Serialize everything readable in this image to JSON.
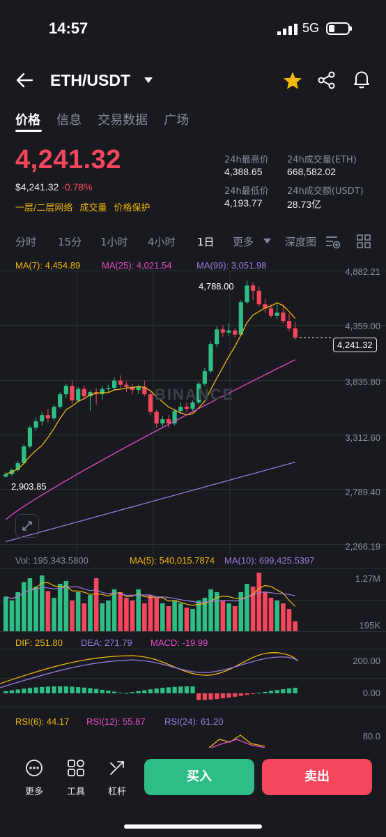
{
  "status": {
    "time": "14:57",
    "network": "5G"
  },
  "header": {
    "pair": "ETH/USDT"
  },
  "tabs": [
    "价格",
    "信息",
    "交易数据",
    "广场"
  ],
  "ticker": {
    "price": "4,241.32",
    "usd_price": "$4,241.32",
    "change": "-0.78%",
    "tags": [
      "一层/二层网络",
      "成交量",
      "价格保护"
    ],
    "high_label": "24h最高价",
    "high": "4,388.65",
    "low_label": "24h最低价",
    "low": "4,193.77",
    "vol_eth_label": "24h成交量(ETH)",
    "vol_eth": "668,582.02",
    "vol_usdt_label": "24h成交额(USDT)",
    "vol_usdt": "28.73亿"
  },
  "intervals": [
    "分时",
    "15分",
    "1小时",
    "4小时",
    "1日",
    "更多",
    "深度图"
  ],
  "ma": {
    "ma7": "MA(7): 4,454.89",
    "ma25": "MA(25): 4,021.54",
    "ma99": "MA(99): 3,051.98"
  },
  "price_axis": [
    "4,882.21",
    "4,359.00",
    "3,835.80",
    "3,312.60",
    "2,789.40",
    "2,266.19"
  ],
  "annotations": {
    "high": "4,788.00",
    "low": "2,903.85",
    "current": "4,241.32"
  },
  "watermark": "BINANCE",
  "volume": {
    "vol": "Vol: 195,343.5800",
    "ma5": "MA(5): 540,015.7874",
    "ma10": "MA(10): 699,425.5397",
    "axis_top": "1.27M",
    "axis_bottom": "195K"
  },
  "macd": {
    "dif": "DIF: 251.80",
    "dea": "DEA: 271.79",
    "macd": "MACD: -19.99",
    "axis_top": "200.00",
    "axis_bottom": "0.00"
  },
  "rsi": {
    "rsi6": "RSI(6): 44.17",
    "rsi12": "RSI(12): 55.87",
    "rsi24": "RSI(24): 61.20",
    "axis_top": "80.0"
  },
  "bottom": {
    "more": "更多",
    "tools": "工具",
    "leverage": "杠杆",
    "buy": "买入",
    "sell": "卖出"
  },
  "colors": {
    "up": "#2ebd85",
    "down": "#f6465d",
    "accent": "#f0b90b",
    "ma25": "#e74cc3",
    "ma99": "#9b7bd9"
  },
  "chart_data": {
    "type": "candlestick",
    "candles": [
      {
        "o": 2910,
        "h": 2960,
        "l": 2904,
        "c": 2935
      },
      {
        "o": 2935,
        "h": 2990,
        "l": 2920,
        "c": 2975
      },
      {
        "o": 2975,
        "h": 3060,
        "l": 2960,
        "c": 3040
      },
      {
        "o": 3040,
        "h": 3220,
        "l": 3030,
        "c": 3200
      },
      {
        "o": 3200,
        "h": 3400,
        "l": 3180,
        "c": 3380
      },
      {
        "o": 3380,
        "h": 3480,
        "l": 3350,
        "c": 3440
      },
      {
        "o": 3440,
        "h": 3530,
        "l": 3400,
        "c": 3500
      },
      {
        "o": 3500,
        "h": 3560,
        "l": 3430,
        "c": 3470
      },
      {
        "o": 3470,
        "h": 3600,
        "l": 3440,
        "c": 3580
      },
      {
        "o": 3580,
        "h": 3720,
        "l": 3560,
        "c": 3700
      },
      {
        "o": 3700,
        "h": 3800,
        "l": 3660,
        "c": 3780
      },
      {
        "o": 3780,
        "h": 3830,
        "l": 3610,
        "c": 3640
      },
      {
        "o": 3640,
        "h": 3770,
        "l": 3620,
        "c": 3750
      },
      {
        "o": 3750,
        "h": 3780,
        "l": 3650,
        "c": 3680
      },
      {
        "o": 3680,
        "h": 3740,
        "l": 3540,
        "c": 3720
      },
      {
        "o": 3720,
        "h": 3760,
        "l": 3600,
        "c": 3700
      },
      {
        "o": 3700,
        "h": 3780,
        "l": 3650,
        "c": 3750
      },
      {
        "o": 3750,
        "h": 3790,
        "l": 3720,
        "c": 3760
      },
      {
        "o": 3760,
        "h": 3860,
        "l": 3740,
        "c": 3830
      },
      {
        "o": 3830,
        "h": 3880,
        "l": 3760,
        "c": 3790
      },
      {
        "o": 3790,
        "h": 3820,
        "l": 3720,
        "c": 3770
      },
      {
        "o": 3770,
        "h": 3800,
        "l": 3700,
        "c": 3740
      },
      {
        "o": 3740,
        "h": 3790,
        "l": 3700,
        "c": 3770
      },
      {
        "o": 3770,
        "h": 3830,
        "l": 3680,
        "c": 3700
      },
      {
        "o": 3700,
        "h": 3720,
        "l": 3500,
        "c": 3530
      },
      {
        "o": 3530,
        "h": 3550,
        "l": 3380,
        "c": 3420
      },
      {
        "o": 3420,
        "h": 3490,
        "l": 3390,
        "c": 3460
      },
      {
        "o": 3460,
        "h": 3500,
        "l": 3380,
        "c": 3420
      },
      {
        "o": 3420,
        "h": 3560,
        "l": 3400,
        "c": 3540
      },
      {
        "o": 3540,
        "h": 3620,
        "l": 3510,
        "c": 3580
      },
      {
        "o": 3580,
        "h": 3620,
        "l": 3530,
        "c": 3560
      },
      {
        "o": 3560,
        "h": 3640,
        "l": 3540,
        "c": 3620
      },
      {
        "o": 3620,
        "h": 3820,
        "l": 3600,
        "c": 3800
      },
      {
        "o": 3800,
        "h": 3950,
        "l": 3780,
        "c": 3920
      },
      {
        "o": 3920,
        "h": 4200,
        "l": 3900,
        "c": 4180
      },
      {
        "o": 4180,
        "h": 4350,
        "l": 4150,
        "c": 4320
      },
      {
        "o": 4320,
        "h": 4360,
        "l": 4250,
        "c": 4290
      },
      {
        "o": 4290,
        "h": 4380,
        "l": 4260,
        "c": 4310
      },
      {
        "o": 4310,
        "h": 4330,
        "l": 4240,
        "c": 4270
      },
      {
        "o": 4270,
        "h": 4600,
        "l": 4260,
        "c": 4580
      },
      {
        "o": 4580,
        "h": 4788,
        "l": 4560,
        "c": 4740
      },
      {
        "o": 4740,
        "h": 4770,
        "l": 4600,
        "c": 4690
      },
      {
        "o": 4690,
        "h": 4730,
        "l": 4540,
        "c": 4560
      },
      {
        "o": 4560,
        "h": 4610,
        "l": 4480,
        "c": 4520
      },
      {
        "o": 4520,
        "h": 4560,
        "l": 4430,
        "c": 4450
      },
      {
        "o": 4450,
        "h": 4580,
        "l": 4420,
        "c": 4480
      },
      {
        "o": 4480,
        "h": 4560,
        "l": 4380,
        "c": 4400
      },
      {
        "o": 4400,
        "h": 4470,
        "l": 4300,
        "c": 4330
      },
      {
        "o": 4330,
        "h": 4390,
        "l": 4220,
        "c": 4241
      }
    ],
    "ylim": [
      2266.19,
      4882.21
    ],
    "volumes": [
      0.62,
      0.55,
      0.7,
      0.88,
      0.95,
      0.8,
      1.0,
      0.72,
      0.6,
      0.85,
      0.9,
      0.55,
      0.7,
      0.5,
      0.65,
      0.95,
      0.5,
      0.55,
      0.75,
      0.7,
      0.6,
      0.55,
      0.75,
      0.5,
      0.65,
      0.6,
      0.5,
      0.45,
      0.55,
      0.5,
      0.42,
      0.4,
      0.55,
      0.6,
      0.75,
      0.7,
      0.55,
      0.5,
      0.45,
      0.7,
      0.85,
      0.8,
      1.05,
      0.7,
      0.6,
      0.55,
      0.5,
      0.4,
      0.18
    ]
  }
}
